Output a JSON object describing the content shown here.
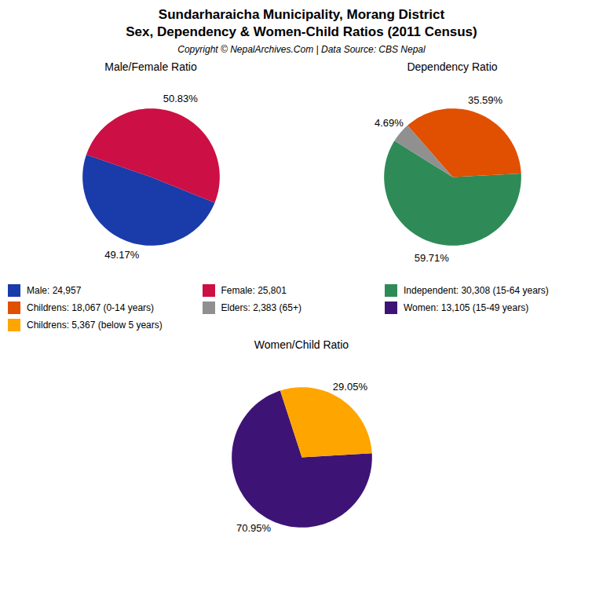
{
  "title": "Sundarharaicha Municipality, Morang District",
  "subtitle": "Sex, Dependency & Women-Child Ratios (2011 Census)",
  "caption": "Copyright © NepalArchives.Com | Data Source: CBS Nepal",
  "chart_data": [
    {
      "type": "pie",
      "title": "Male/Female Ratio",
      "categories": [
        "Male: 24,957",
        "Female: 25,801"
      ],
      "values": [
        49.17,
        50.83
      ],
      "value_labels": [
        "49.17%",
        "50.83%"
      ],
      "colors": [
        "#1A3BAA",
        "#CC0F44"
      ],
      "data_labels": true
    },
    {
      "type": "pie",
      "title": "Dependency Ratio",
      "categories": [
        "Independent: 30,308 (15-64 years)",
        "Childrens: 18,067 (0-14 years)",
        "Elders: 2,383 (65+)"
      ],
      "values": [
        59.71,
        35.59,
        4.69
      ],
      "value_labels": [
        "59.71%",
        "35.59%",
        "4.69%"
      ],
      "colors": [
        "#2E8B57",
        "#E05000",
        "#909090"
      ],
      "data_labels": true
    },
    {
      "type": "pie",
      "title": "Women/Child Ratio",
      "categories": [
        "Women: 13,105 (15-49 years)",
        "Childrens: 5,367 (below 5 years)"
      ],
      "values": [
        70.95,
        29.05
      ],
      "value_labels": [
        "70.95%",
        "29.05%"
      ],
      "colors": [
        "#3D1475",
        "#FFA500"
      ],
      "data_labels": true
    }
  ]
}
